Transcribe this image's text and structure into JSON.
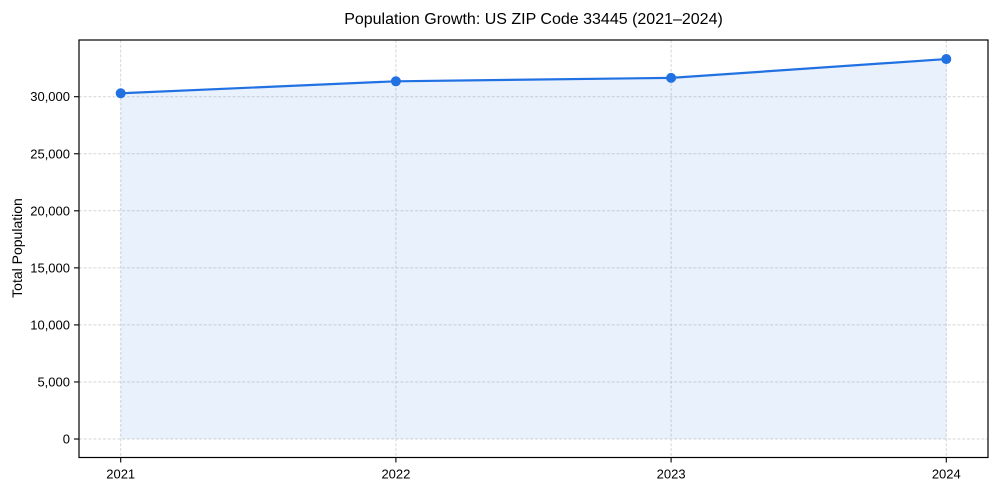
{
  "chart_data": {
    "type": "line",
    "title": "Population Growth: US ZIP Code 33445 (2021–2024)",
    "xlabel": "",
    "ylabel": "Total Population",
    "categories": [
      "2021",
      "2022",
      "2023",
      "2024"
    ],
    "series": [
      {
        "name": "Total Population",
        "values": [
          30300,
          31350,
          31650,
          33300
        ]
      }
    ],
    "yticks": [
      0,
      5000,
      10000,
      15000,
      20000,
      25000,
      30000
    ],
    "ylim": [
      -1620,
      34970
    ],
    "grid": true,
    "grid_style": "dashed",
    "legend_position": "none",
    "marker": "circle",
    "area_fill": true,
    "colors": {
      "line": "#2271e3",
      "marker": "#2271e3",
      "area": "rgba(34,113,227,0.10)",
      "grid": "#d6d6d6",
      "spine": "#000000",
      "text": "#000000",
      "background": "#ffffff"
    }
  }
}
